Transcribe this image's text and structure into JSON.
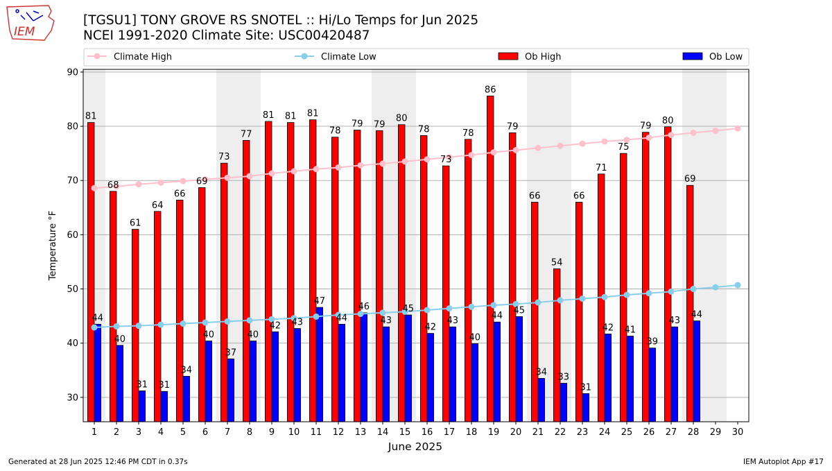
{
  "header": {
    "title_line1": "[TGSU1] TONY GROVE RS SNOTEL :: Hi/Lo Temps for Jun 2025",
    "title_line2": "NCEI 1991-2020 Climate Site: USC00420487",
    "logo_text": "IEM"
  },
  "footer": {
    "generated": "Generated at 28 Jun 2025 12:46 PM CDT in 0.37s",
    "app": "IEM Autoplot App #17"
  },
  "colors": {
    "ob_high": "#ff0000",
    "ob_low": "#0000ff",
    "climate_high": "#ffc0cb",
    "climate_low": "#87ceeb",
    "weekend_band": "#eeeeee",
    "grid": "#b0b0b0"
  },
  "chart_data": {
    "type": "bar",
    "title": "[TGSU1] TONY GROVE RS SNOTEL :: Hi/Lo Temps for Jun 2025",
    "xlabel": "June 2025",
    "ylabel": "Temperature °F",
    "ylim": [
      25.5,
      90.5
    ],
    "yticks": [
      30,
      40,
      50,
      60,
      70,
      80,
      90
    ],
    "grid": true,
    "legend": [
      "Climate High",
      "Climate Low",
      "Ob High",
      "Ob Low"
    ],
    "legend_position": "top",
    "categories": [
      1,
      2,
      3,
      4,
      5,
      6,
      7,
      8,
      9,
      10,
      11,
      12,
      13,
      14,
      15,
      16,
      17,
      18,
      19,
      20,
      21,
      22,
      23,
      24,
      25,
      26,
      27,
      28,
      29,
      30
    ],
    "weekend_days": [
      1,
      7,
      8,
      14,
      15,
      21,
      22,
      28,
      29
    ],
    "series": [
      {
        "name": "Ob High",
        "kind": "bar",
        "values": [
          80.7,
          68.0,
          61.0,
          64.3,
          66.4,
          68.7,
          73.2,
          77.4,
          80.9,
          80.7,
          81.2,
          78.0,
          79.3,
          79.2,
          80.3,
          78.3,
          72.7,
          77.6,
          85.6,
          78.8,
          66.0,
          53.7,
          66.0,
          71.2,
          75.0,
          78.9,
          79.9,
          69.1,
          null,
          null
        ],
        "labels": [
          81,
          68,
          61,
          64,
          66,
          69,
          73,
          77,
          81,
          81,
          81,
          78,
          79,
          79,
          80,
          78,
          73,
          78,
          86,
          79,
          66,
          54,
          66,
          71,
          75,
          79,
          80,
          69,
          null,
          null
        ]
      },
      {
        "name": "Ob Low",
        "kind": "bar",
        "values": [
          43.5,
          39.6,
          31.2,
          31.1,
          33.9,
          40.4,
          37.1,
          40.4,
          42.1,
          42.7,
          46.6,
          43.5,
          45.6,
          43.0,
          45.2,
          41.8,
          43.0,
          39.9,
          43.9,
          44.9,
          33.5,
          32.6,
          30.7,
          41.7,
          41.3,
          39.1,
          43.0,
          44.1,
          null,
          null
        ],
        "labels": [
          44,
          40,
          31,
          31,
          34,
          40,
          37,
          40,
          42,
          43,
          47,
          44,
          46,
          43,
          45,
          42,
          43,
          40,
          44,
          45,
          34,
          33,
          31,
          42,
          41,
          39,
          43,
          44,
          null,
          null
        ]
      },
      {
        "name": "Climate High",
        "kind": "line",
        "values": [
          68.6,
          68.9,
          69.3,
          69.6,
          69.9,
          70.2,
          70.5,
          70.8,
          71.3,
          71.7,
          72.1,
          72.4,
          72.8,
          73.1,
          73.5,
          73.9,
          74.3,
          74.7,
          75.2,
          75.6,
          76.0,
          76.4,
          76.8,
          77.2,
          77.5,
          77.9,
          78.4,
          78.8,
          79.2,
          79.6
        ]
      },
      {
        "name": "Climate Low",
        "kind": "line",
        "values": [
          42.9,
          43.1,
          43.2,
          43.4,
          43.6,
          43.8,
          44.0,
          44.2,
          44.4,
          44.6,
          44.9,
          45.2,
          45.4,
          45.6,
          45.8,
          46.1,
          46.4,
          46.7,
          47.0,
          47.2,
          47.5,
          47.9,
          48.2,
          48.5,
          48.9,
          49.2,
          49.5,
          50.0,
          50.3,
          50.7
        ]
      }
    ]
  }
}
